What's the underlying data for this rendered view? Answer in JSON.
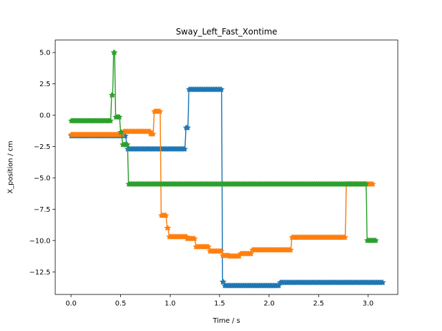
{
  "chart_data": {
    "type": "line",
    "title": "Sway_Left_Fast_Xontime",
    "xlabel": "Time / s",
    "ylabel": "X_position / cm",
    "xlim": [
      -0.16,
      3.3
    ],
    "ylim": [
      -14.3,
      6.0
    ],
    "xticks": [
      0.0,
      0.5,
      1.0,
      1.5,
      2.0,
      2.5,
      3.0
    ],
    "xtick_labels": [
      "0.0",
      "0.5",
      "1.0",
      "1.5",
      "2.0",
      "2.5",
      "3.0"
    ],
    "yticks": [
      5.0,
      2.5,
      0.0,
      -2.5,
      -5.0,
      -7.5,
      -10.0,
      -12.5
    ],
    "ytick_labels": [
      "5.0",
      "2.5",
      "0.0",
      "−2.5",
      "−5.0",
      "−7.5",
      "−10.0",
      "−12.5"
    ],
    "grid": false,
    "legend": "none",
    "series": [
      {
        "color": "#1f77b4",
        "marker": "star",
        "segments": [
          {
            "x0": 0.0,
            "x1": 0.5,
            "y": -1.65
          },
          {
            "x0": 0.5,
            "x1": 0.55,
            "y": -1.65
          },
          {
            "x0": 0.57,
            "x1": 1.15,
            "y": -2.7
          },
          {
            "x0": 1.16,
            "x1": 1.18,
            "y": -1.0
          },
          {
            "x0": 1.19,
            "x1": 1.52,
            "y": 2.05
          },
          {
            "x0": 1.53,
            "x1": 1.54,
            "y": -13.3
          },
          {
            "x0": 1.55,
            "x1": 2.1,
            "y": -13.6
          },
          {
            "x0": 2.11,
            "x1": 3.15,
            "y": -13.35
          }
        ]
      },
      {
        "color": "#ff7f0e",
        "marker": "star",
        "segments": [
          {
            "x0": 0.0,
            "x1": 0.52,
            "y": -1.55
          },
          {
            "x0": 0.53,
            "x1": 0.8,
            "y": -1.3
          },
          {
            "x0": 0.8,
            "x1": 0.83,
            "y": -1.5
          },
          {
            "x0": 0.84,
            "x1": 0.9,
            "y": 0.3
          },
          {
            "x0": 0.91,
            "x1": 0.96,
            "y": -8.0
          },
          {
            "x0": 0.97,
            "x1": 0.98,
            "y": -9.0
          },
          {
            "x0": 0.99,
            "x1": 1.17,
            "y": -9.7
          },
          {
            "x0": 1.17,
            "x1": 1.25,
            "y": -9.85
          },
          {
            "x0": 1.26,
            "x1": 1.39,
            "y": -10.5
          },
          {
            "x0": 1.4,
            "x1": 1.52,
            "y": -10.85
          },
          {
            "x0": 1.53,
            "x1": 1.6,
            "y": -11.2
          },
          {
            "x0": 1.6,
            "x1": 1.7,
            "y": -11.25
          },
          {
            "x0": 1.71,
            "x1": 1.82,
            "y": -11.05
          },
          {
            "x0": 1.83,
            "x1": 2.22,
            "y": -10.75
          },
          {
            "x0": 2.23,
            "x1": 2.77,
            "y": -9.75
          },
          {
            "x0": 2.78,
            "x1": 3.05,
            "y": -5.5
          }
        ]
      },
      {
        "color": "#2ca02c",
        "marker": "star",
        "segments": [
          {
            "x0": 0.0,
            "x1": 0.4,
            "y": -0.45
          },
          {
            "x0": 0.41,
            "x1": 0.42,
            "y": 1.6
          },
          {
            "x0": 0.43,
            "x1": 0.44,
            "y": 5.0
          },
          {
            "x0": 0.45,
            "x1": 0.49,
            "y": -0.15
          },
          {
            "x0": 0.5,
            "x1": 0.51,
            "y": -1.35
          },
          {
            "x0": 0.52,
            "x1": 0.57,
            "y": -2.35
          },
          {
            "x0": 0.58,
            "x1": 2.98,
            "y": -5.5
          },
          {
            "x0": 2.99,
            "x1": 3.08,
            "y": -10.0
          }
        ]
      }
    ]
  }
}
